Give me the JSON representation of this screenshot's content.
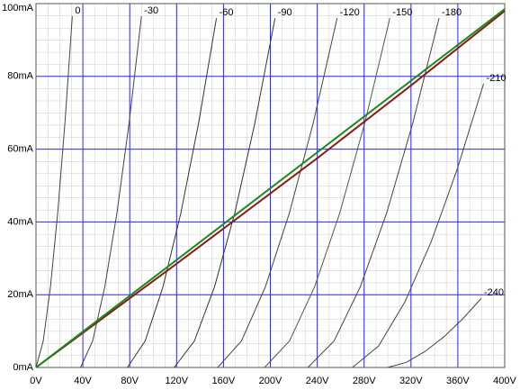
{
  "chart_data": {
    "type": "line",
    "xlim": [
      0,
      400
    ],
    "xticks": [
      {
        "value": 0,
        "label": "0V"
      },
      {
        "value": 40,
        "label": "40V"
      },
      {
        "value": 80,
        "label": "80V"
      },
      {
        "value": 120,
        "label": "120V"
      },
      {
        "value": 160,
        "label": "160V"
      },
      {
        "value": 200,
        "label": "200V"
      },
      {
        "value": 240,
        "label": "240V"
      },
      {
        "value": 280,
        "label": "280V"
      },
      {
        "value": 320,
        "label": "320V"
      },
      {
        "value": 360,
        "label": "360V"
      },
      {
        "value": 400,
        "label": "400V"
      }
    ],
    "ylim": [
      0,
      100
    ],
    "yticks": [
      {
        "value": 0,
        "label": "0mA"
      },
      {
        "value": 20,
        "label": "20mA"
      },
      {
        "value": 40,
        "label": "40mA"
      },
      {
        "value": 60,
        "label": "60mA"
      },
      {
        "value": 80,
        "label": "80mA"
      },
      {
        "value": 100,
        "label": "100mA"
      }
    ],
    "grid": true,
    "grid_color": "#2a2aff",
    "label_color": "#2a4aff",
    "series": [
      {
        "name": "0",
        "color": "#444444",
        "x": [
          0,
          6.2,
          12.4,
          18.6,
          24.8,
          31
        ],
        "values": [
          0,
          7.3,
          22.3,
          42.7,
          67.6,
          96.5
        ]
      },
      {
        "name": "-30",
        "color": "#444444",
        "x": [
          38,
          48.4,
          58.8,
          69.2,
          79.6,
          90
        ],
        "values": [
          0,
          7.3,
          22.3,
          42.7,
          67.6,
          96.5
        ]
      },
      {
        "name": "-60",
        "color": "#333333",
        "x": [
          78,
          93.2,
          108.4,
          123.6,
          138.8,
          154
        ],
        "values": [
          0,
          7.3,
          22.2,
          42.4,
          67.2,
          96
        ]
      },
      {
        "name": "-90",
        "color": "#333333",
        "x": [
          118,
          135.2,
          152.4,
          169.6,
          186.8,
          204
        ],
        "values": [
          0,
          7.3,
          22.2,
          42.4,
          67.2,
          96
        ]
      },
      {
        "name": "-120",
        "color": "#444444",
        "x": [
          155,
          175.4,
          195.8,
          216.2,
          236.6,
          257
        ],
        "values": [
          0,
          7.3,
          22.2,
          42.4,
          67.2,
          96
        ]
      },
      {
        "name": "-150",
        "color": "#555555",
        "x": [
          195,
          216.4,
          237.8,
          259.2,
          280.6,
          302
        ],
        "values": [
          0,
          7.3,
          22.2,
          42.4,
          67.2,
          96
        ]
      },
      {
        "name": "-180",
        "color": "#444444",
        "x": [
          232,
          254.4,
          276.8,
          299.2,
          321.6,
          344
        ],
        "values": [
          0,
          7.3,
          22.2,
          42.4,
          67.2,
          96
        ]
      },
      {
        "name": "-210",
        "color": "#444444",
        "x": [
          270,
          292.4,
          314.8,
          337.2,
          359.6,
          382
        ],
        "values": [
          0,
          5.9,
          18,
          34.5,
          54.6,
          78
        ]
      },
      {
        "name": "-240",
        "color": "#444444",
        "x": [
          300,
          316,
          332,
          348,
          364,
          380
        ],
        "values": [
          0,
          1.4,
          4.4,
          8.4,
          13.3,
          19
        ]
      },
      {
        "color": "#8b1a1a",
        "x": [
          0,
          120,
          240,
          320,
          400
        ],
        "values": [
          0,
          28.5,
          57.5,
          77.5,
          98
        ]
      },
      {
        "color": "#1a8a1a",
        "x": [
          0,
          400
        ],
        "values": [
          0,
          98.5
        ]
      }
    ]
  }
}
